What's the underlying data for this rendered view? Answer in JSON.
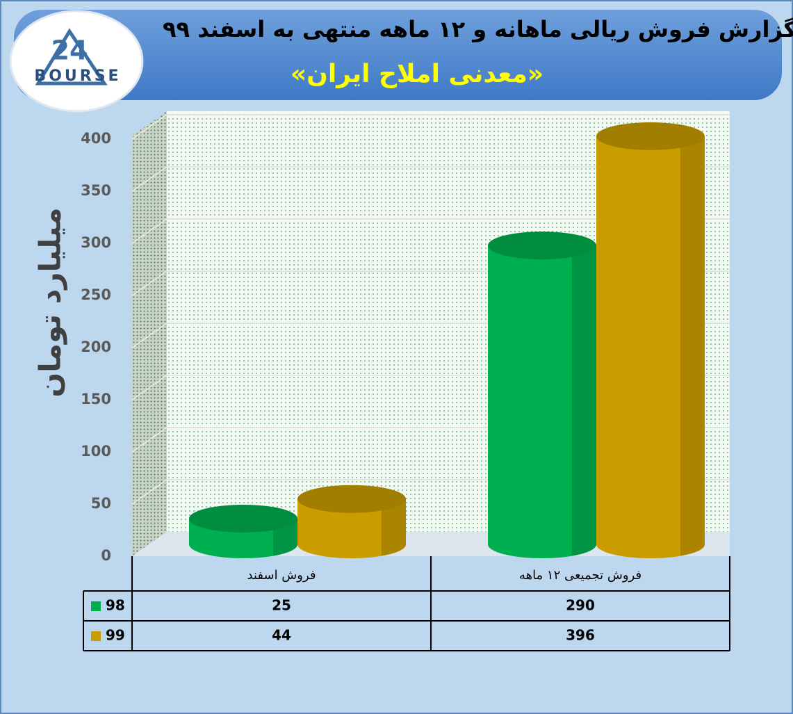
{
  "chart_data": {
    "type": "bar3d",
    "title": "گزارش فروش ریالی ماهانه و ۱۲ ماهه منتهی به اسفند ۹۹",
    "subtitle": "«معدنی املاح ایران»",
    "logo": {
      "mark": "24",
      "name": "BOURSE"
    },
    "y_label": "میلیارد تومان",
    "categories": [
      "فروش اسفند",
      "فروش تجمیعی ۱۲ ماهه"
    ],
    "series": [
      {
        "name": "98",
        "color": "#00b050",
        "values": [
          25,
          290
        ]
      },
      {
        "name": "99",
        "color": "#c99c00",
        "values": [
          44,
          396
        ]
      }
    ],
    "ylim": [
      0,
      400
    ],
    "yticks": [
      0,
      50,
      100,
      150,
      200,
      250,
      300,
      350,
      400
    ],
    "grid": true
  }
}
